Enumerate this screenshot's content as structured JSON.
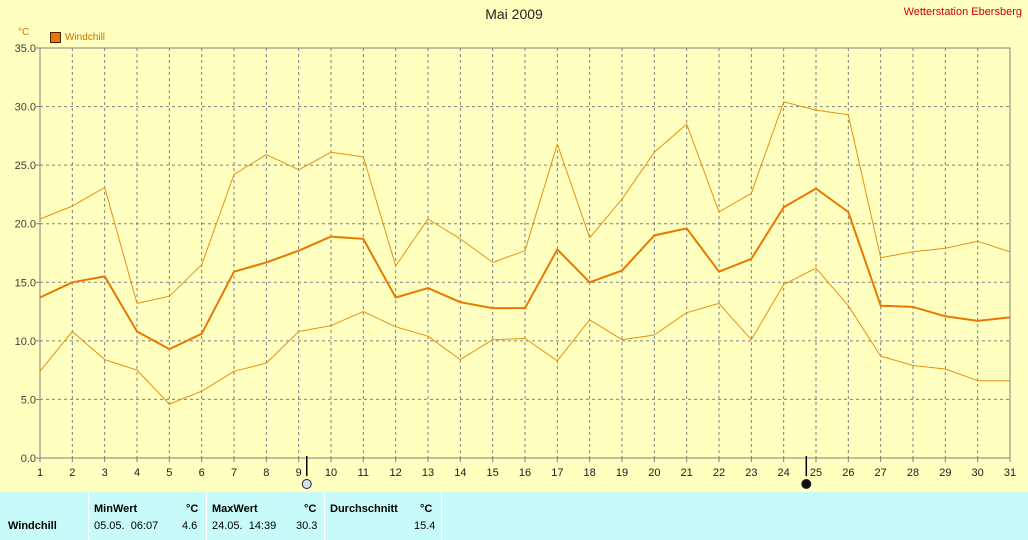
{
  "chart_data": {
    "type": "line",
    "title": "Mai 2009",
    "station": "Wetterstation Ebersberg",
    "unit": "°C",
    "ylim": [
      0,
      35
    ],
    "yticks": [
      "0.0",
      "5.0",
      "10.0",
      "15.0",
      "20.0",
      "25.0",
      "30.0",
      "35.0"
    ],
    "x": [
      1,
      2,
      3,
      4,
      5,
      6,
      7,
      8,
      9,
      10,
      11,
      12,
      13,
      14,
      15,
      16,
      17,
      18,
      19,
      20,
      21,
      22,
      23,
      24,
      25,
      26,
      27,
      28,
      29,
      30,
      31
    ],
    "grid": true,
    "legend": "top-left",
    "series": [
      {
        "name": "Windchill",
        "color": "#e87800",
        "width": 2,
        "values": [
          13.7,
          15.0,
          15.5,
          10.8,
          9.3,
          10.6,
          15.9,
          16.7,
          17.7,
          18.9,
          18.7,
          13.7,
          14.5,
          13.3,
          12.8,
          12.8,
          17.8,
          15.0,
          16.0,
          19.0,
          19.6,
          15.9,
          17.0,
          21.4,
          23.0,
          21.0,
          13.0,
          12.9,
          12.1,
          11.7,
          12.0
        ]
      },
      {
        "color": "#e89010",
        "width": 1,
        "values": [
          20.4,
          21.5,
          23.1,
          13.2,
          13.8,
          16.5,
          24.2,
          25.9,
          24.6,
          26.1,
          25.7,
          16.4,
          20.4,
          18.7,
          16.7,
          17.7,
          26.8,
          18.8,
          22.1,
          26.1,
          28.5,
          21.0,
          22.6,
          30.4,
          29.7,
          29.3,
          17.1,
          17.6,
          17.9,
          18.5,
          17.6
        ]
      },
      {
        "color": "#e89010",
        "width": 1,
        "values": [
          7.4,
          10.8,
          8.4,
          7.5,
          4.6,
          5.7,
          7.4,
          8.1,
          10.8,
          11.3,
          12.5,
          11.2,
          10.4,
          8.4,
          10.1,
          10.2,
          8.3,
          11.8,
          10.1,
          10.5,
          12.4,
          13.2,
          10.1,
          14.8,
          16.2,
          13.0,
          8.7,
          7.9,
          7.6,
          6.6,
          6.6
        ]
      }
    ],
    "moon_markers": [
      {
        "x": 9.25,
        "phase": "full-moon-icon"
      },
      {
        "x": 24.7,
        "phase": "new-moon-icon"
      }
    ]
  },
  "table": {
    "min_header": "MinWert",
    "max_header": "MaxWert",
    "avg_header": "Durchschnitt",
    "unit": "°C",
    "rows": [
      {
        "label": "Windchill",
        "min_date": "05.05.  06:07",
        "min_value": "4.6",
        "max_date": "24.05.  14:39",
        "max_value": "30.3",
        "avg_value": "15.4"
      }
    ]
  }
}
